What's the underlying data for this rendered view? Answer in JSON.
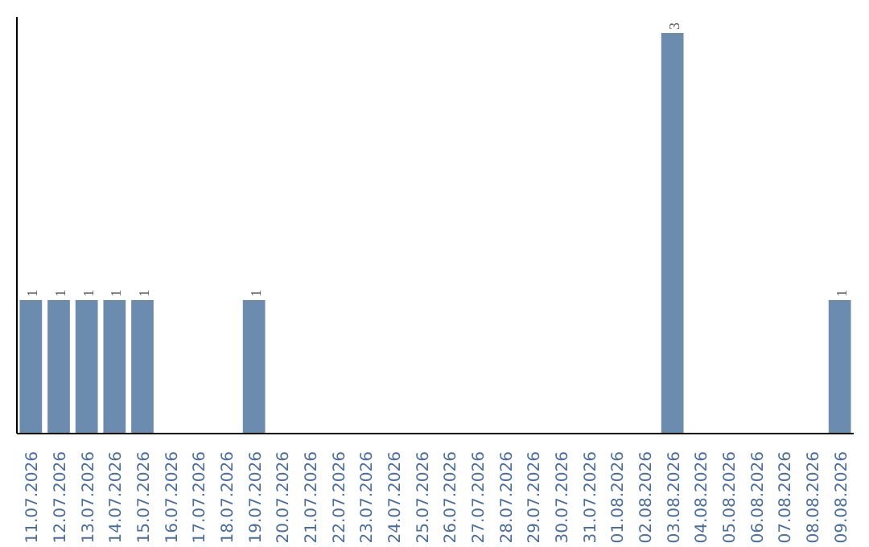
{
  "chart_data": {
    "type": "bar",
    "categories": [
      "11.07.2026",
      "12.07.2026",
      "13.07.2026",
      "14.07.2026",
      "15.07.2026",
      "16.07.2026",
      "17.07.2026",
      "18.07.2026",
      "19.07.2026",
      "20.07.2026",
      "21.07.2026",
      "22.07.2026",
      "23.07.2026",
      "24.07.2026",
      "25.07.2026",
      "26.07.2026",
      "27.07.2026",
      "28.07.2026",
      "29.07.2026",
      "30.07.2026",
      "31.07.2026",
      "01.08.2026",
      "02.08.2026",
      "03.08.2026",
      "04.08.2026",
      "05.08.2026",
      "06.08.2026",
      "07.08.2026",
      "08.08.2026",
      "09.08.2026"
    ],
    "values": [
      1,
      1,
      1,
      1,
      1,
      0,
      0,
      0,
      1,
      0,
      0,
      0,
      0,
      0,
      0,
      0,
      0,
      0,
      0,
      0,
      0,
      0,
      0,
      3,
      0,
      0,
      0,
      0,
      0,
      1
    ],
    "value_labels": [
      "1",
      "1",
      "1",
      "1",
      "1",
      null,
      null,
      null,
      "1",
      null,
      null,
      null,
      null,
      null,
      null,
      null,
      null,
      null,
      null,
      null,
      null,
      null,
      null,
      "3",
      null,
      null,
      null,
      null,
      null,
      "1"
    ],
    "color": "#6b8cae",
    "grid": false
  }
}
